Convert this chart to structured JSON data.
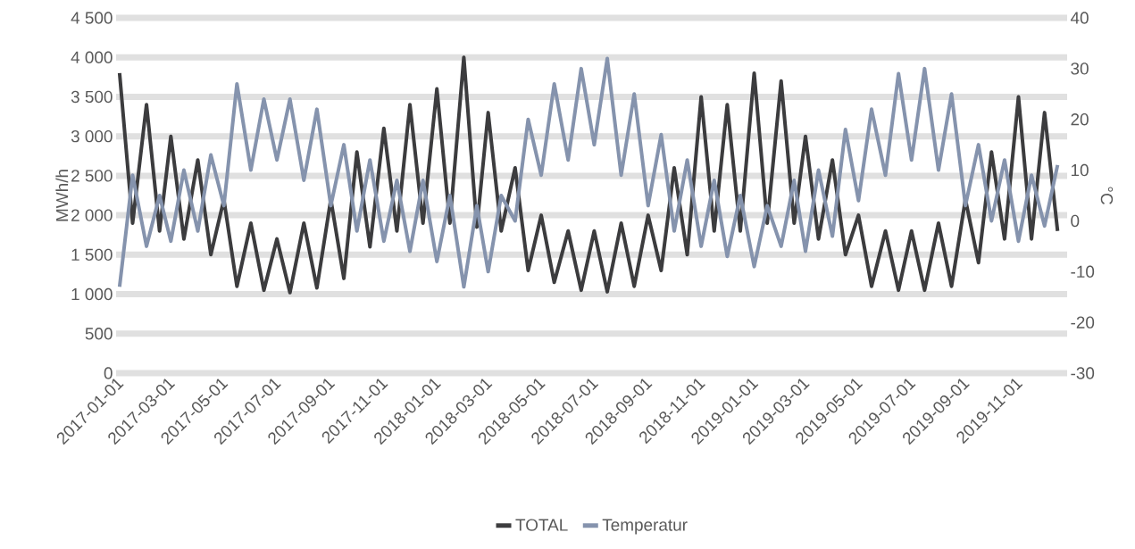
{
  "chart_data": {
    "type": "line",
    "ylabel": "MWh/h",
    "y2label": "°C",
    "x": [
      "2017-01-05",
      "2017-01-20",
      "2017-02-05",
      "2017-02-20",
      "2017-03-05",
      "2017-03-20",
      "2017-04-05",
      "2017-04-20",
      "2017-05-05",
      "2017-05-20",
      "2017-06-05",
      "2017-06-20",
      "2017-07-05",
      "2017-07-20",
      "2017-08-05",
      "2017-08-20",
      "2017-09-05",
      "2017-09-20",
      "2017-10-05",
      "2017-10-20",
      "2017-11-05",
      "2017-11-20",
      "2017-12-05",
      "2017-12-20",
      "2018-01-05",
      "2018-01-20",
      "2018-02-05",
      "2018-02-20",
      "2018-03-05",
      "2018-03-20",
      "2018-04-05",
      "2018-04-20",
      "2018-05-05",
      "2018-05-20",
      "2018-06-05",
      "2018-06-20",
      "2018-07-05",
      "2018-07-20",
      "2018-08-05",
      "2018-08-20",
      "2018-09-05",
      "2018-09-20",
      "2018-10-05",
      "2018-10-20",
      "2018-11-05",
      "2018-11-20",
      "2018-12-05",
      "2018-12-20",
      "2019-01-05",
      "2019-01-20",
      "2019-02-05",
      "2019-02-20",
      "2019-03-05",
      "2019-03-20",
      "2019-04-05",
      "2019-04-20",
      "2019-05-05",
      "2019-05-20",
      "2019-06-05",
      "2019-06-20",
      "2019-07-05",
      "2019-07-20",
      "2019-08-05",
      "2019-08-20",
      "2019-09-05",
      "2019-09-20",
      "2019-10-05",
      "2019-10-20",
      "2019-11-05",
      "2019-11-20",
      "2019-12-05",
      "2019-12-20"
    ],
    "series": [
      {
        "name": "TOTAL",
        "color": "#3c3c3e",
        "values": [
          3800,
          1900,
          3400,
          1800,
          3000,
          1700,
          2700,
          1500,
          2200,
          1100,
          1900,
          1050,
          1700,
          1020,
          1900,
          1080,
          2200,
          1200,
          2800,
          1600,
          3100,
          1800,
          3400,
          1900,
          3600,
          1900,
          4000,
          1850,
          3300,
          1800,
          2600,
          1300,
          2000,
          1150,
          1800,
          1050,
          1800,
          1030,
          1900,
          1100,
          2000,
          1300,
          2600,
          1500,
          3500,
          1800,
          3400,
          1800,
          3800,
          1900,
          3700,
          1900,
          3000,
          1700,
          2700,
          1500,
          2000,
          1100,
          1800,
          1050,
          1800,
          1050,
          1900,
          1100,
          2200,
          1400,
          2800,
          1700,
          3500,
          1700,
          3300,
          1800
        ]
      },
      {
        "name": "Temperatur",
        "color": "#8593ad",
        "axis": "y2",
        "values": [
          -13,
          9,
          -5,
          5,
          -4,
          10,
          -2,
          13,
          3,
          27,
          10,
          24,
          12,
          24,
          8,
          22,
          3,
          15,
          -2,
          12,
          -4,
          8,
          -6,
          8,
          -8,
          5,
          -13,
          3,
          -10,
          5,
          0,
          20,
          9,
          27,
          12,
          30,
          15,
          32,
          9,
          25,
          3,
          17,
          -2,
          12,
          -5,
          8,
          -7,
          5,
          -9,
          3,
          -5,
          8,
          -6,
          10,
          -3,
          18,
          4,
          22,
          9,
          29,
          12,
          30,
          10,
          25,
          3,
          15,
          0,
          12,
          -4,
          9,
          -1,
          11
        ]
      }
    ],
    "xlim": [
      "2017-01-01",
      "2019-12-31"
    ],
    "xticks": [
      "2017-01-01",
      "2017-03-01",
      "2017-05-01",
      "2017-07-01",
      "2017-09-01",
      "2017-11-01",
      "2018-01-01",
      "2018-03-01",
      "2018-05-01",
      "2018-07-01",
      "2018-09-01",
      "2018-11-01",
      "2019-01-01",
      "2019-03-01",
      "2019-05-01",
      "2019-07-01",
      "2019-09-01",
      "2019-11-01"
    ],
    "ylim": [
      0,
      4500
    ],
    "yticks": [
      0,
      500,
      {
        "value": 1000,
        "label": "1 000"
      },
      {
        "value": 1500,
        "label": "1 500"
      },
      {
        "value": 2000,
        "label": "2 000"
      },
      {
        "value": 2500,
        "label": "2 500"
      },
      {
        "value": 3000,
        "label": "3 000"
      },
      {
        "value": 3500,
        "label": "3 500"
      },
      {
        "value": 4000,
        "label": "4 000"
      },
      {
        "value": 4500,
        "label": "4 500"
      }
    ],
    "y2lim": [
      -30,
      40
    ],
    "y2ticks": [
      -30,
      -20,
      -10,
      0,
      10,
      20,
      30,
      40
    ],
    "grid": "y",
    "legend": "bottom"
  }
}
